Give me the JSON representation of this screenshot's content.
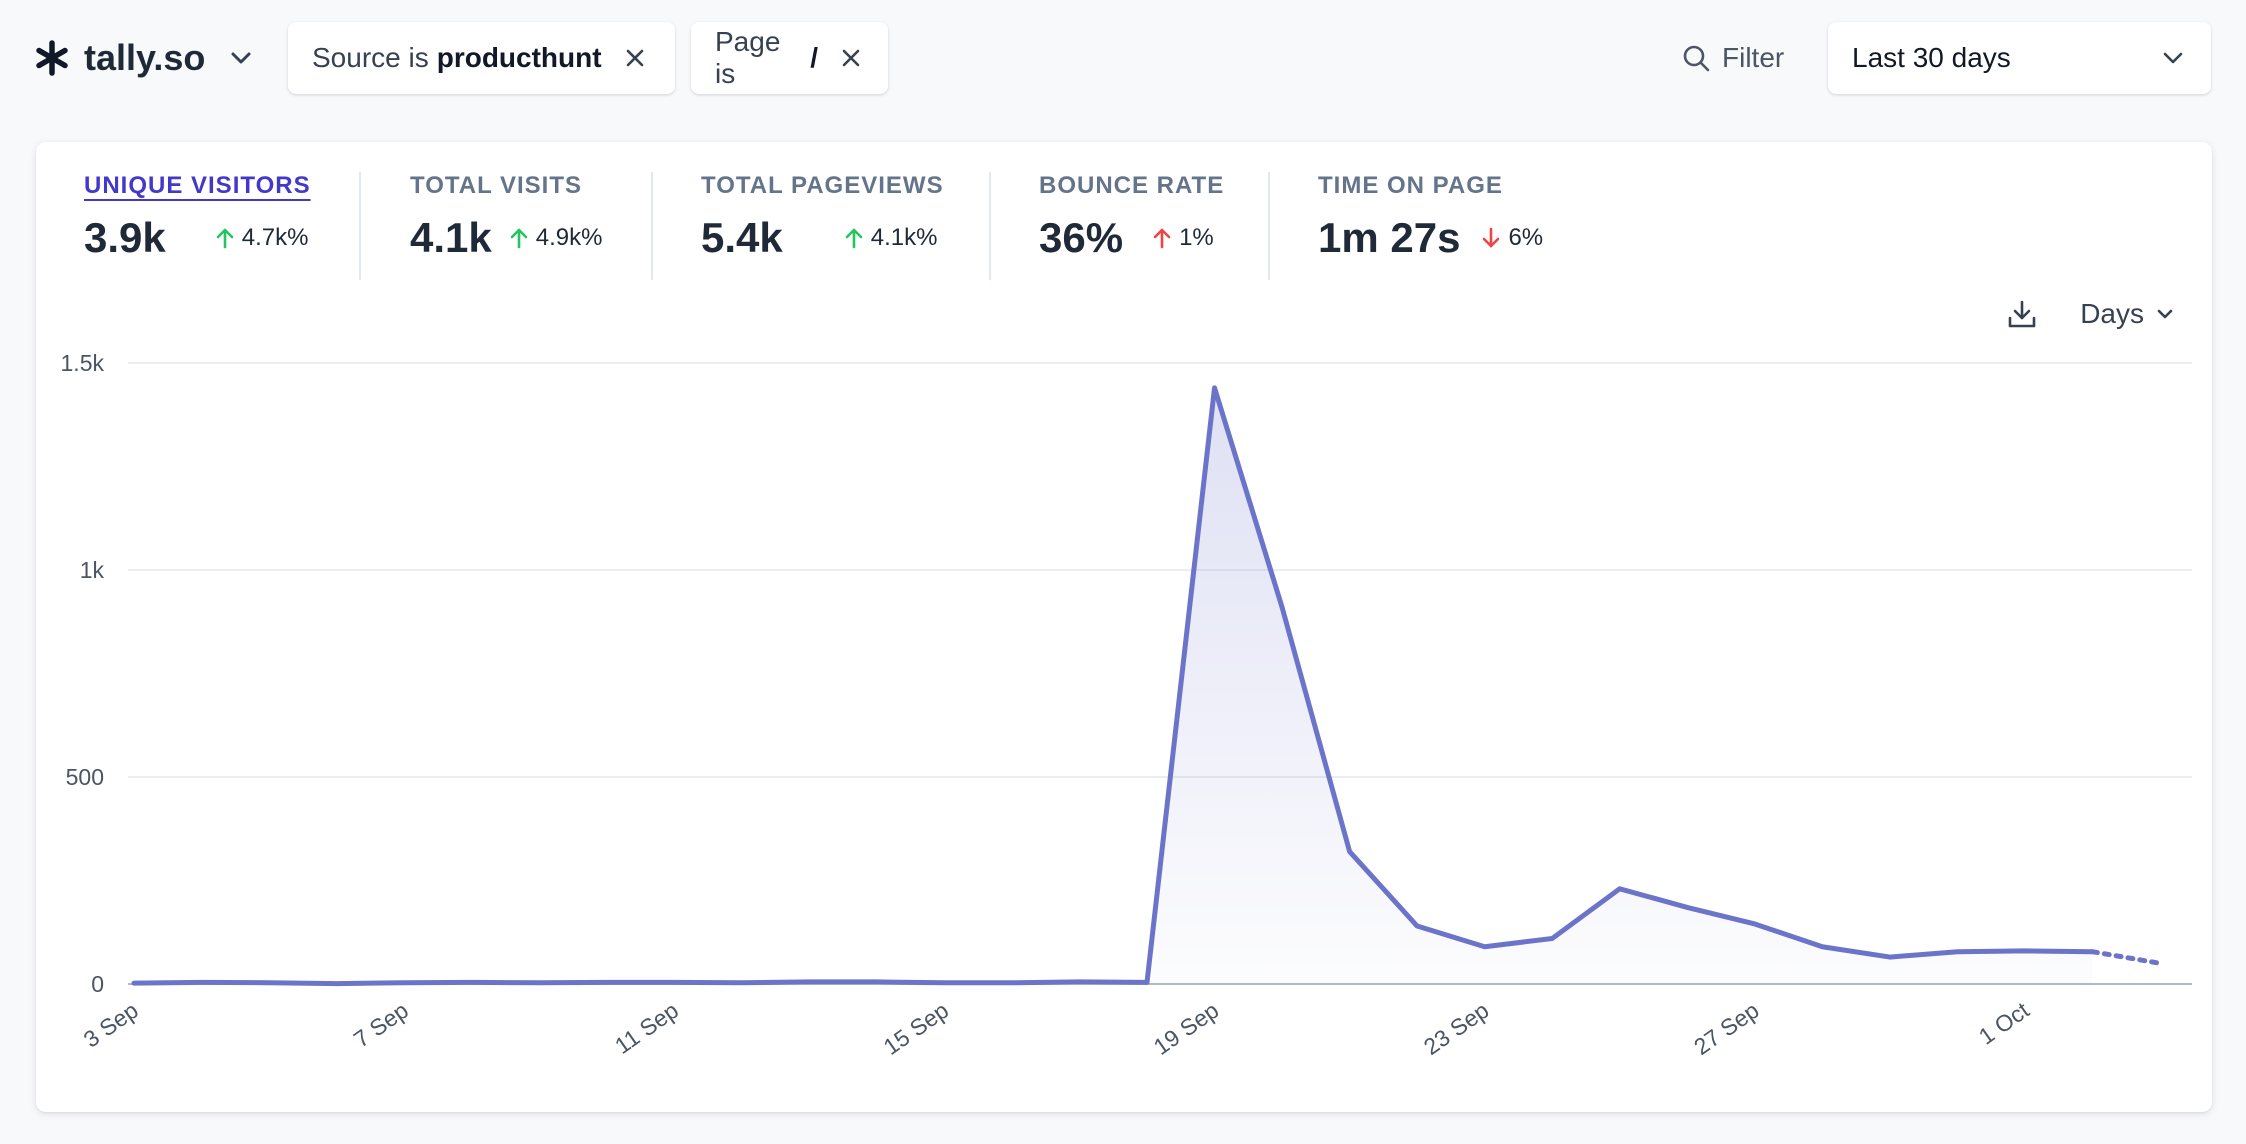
{
  "site": {
    "name": "tally.so"
  },
  "filters": [
    {
      "prefix": "Source is",
      "value": "producthunt"
    },
    {
      "prefix": "Page is",
      "value": "/"
    }
  ],
  "filter_button": {
    "label": "Filter"
  },
  "date_range": {
    "selected": "Last 30 days"
  },
  "metrics": [
    {
      "label": "UNIQUE VISITORS",
      "value": "3.9k",
      "change": "4.7k%",
      "direction": "up",
      "active": true
    },
    {
      "label": "TOTAL VISITS",
      "value": "4.1k",
      "change": "4.9k%",
      "direction": "up",
      "active": false
    },
    {
      "label": "TOTAL PAGEVIEWS",
      "value": "5.4k",
      "change": "4.1k%",
      "direction": "up",
      "active": false
    },
    {
      "label": "BOUNCE RATE",
      "value": "36%",
      "change": "1%",
      "direction": "up-bad",
      "active": false
    },
    {
      "label": "TIME ON PAGE",
      "value": "1m 27s",
      "change": "6%",
      "direction": "down-bad",
      "active": false
    }
  ],
  "interval": {
    "label": "Days"
  },
  "colors": {
    "line": "#6b74c9",
    "up_good": "#22c55e",
    "up_bad": "#ef4444",
    "down_bad": "#ef4444",
    "accent": "#4338ca"
  },
  "chart_data": {
    "type": "line",
    "x": [
      "3 Sep",
      "4 Sep",
      "5 Sep",
      "6 Sep",
      "7 Sep",
      "8 Sep",
      "9 Sep",
      "10 Sep",
      "11 Sep",
      "12 Sep",
      "13 Sep",
      "14 Sep",
      "15 Sep",
      "16 Sep",
      "17 Sep",
      "18 Sep",
      "19 Sep",
      "20 Sep",
      "21 Sep",
      "22 Sep",
      "23 Sep",
      "24 Sep",
      "25 Sep",
      "26 Sep",
      "27 Sep",
      "28 Sep",
      "29 Sep",
      "30 Sep",
      "1 Oct",
      "2 Oct",
      "3 Oct"
    ],
    "series": [
      {
        "values": [
          2,
          4,
          3,
          1,
          3,
          4,
          3,
          4,
          4,
          3,
          5,
          5,
          3,
          3,
          5,
          4,
          1440,
          910,
          320,
          140,
          90,
          110,
          230,
          185,
          145,
          90,
          65,
          78,
          80,
          78,
          50
        ]
      }
    ],
    "partial_last_point": true,
    "x_tick_labels": [
      "3 Sep",
      "7 Sep",
      "11 Sep",
      "15 Sep",
      "19 Sep",
      "23 Sep",
      "27 Sep",
      "1 Oct"
    ],
    "y_tick_labels": [
      "0",
      "500",
      "1k",
      "1.5k"
    ],
    "y_ticks": [
      0,
      500,
      1000,
      1500
    ],
    "ylim": [
      0,
      1500
    ],
    "grid": true
  }
}
